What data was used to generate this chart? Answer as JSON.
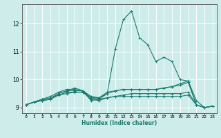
{
  "xlabel": "Humidex (Indice chaleur)",
  "ylabel": "",
  "xlim": [
    -0.5,
    23.5
  ],
  "ylim": [
    8.8,
    12.7
  ],
  "yticks": [
    9,
    10,
    11,
    12
  ],
  "xticks": [
    0,
    1,
    2,
    3,
    4,
    5,
    6,
    7,
    8,
    9,
    10,
    11,
    12,
    13,
    14,
    15,
    16,
    17,
    18,
    19,
    20,
    21,
    22,
    23
  ],
  "bg_color": "#cdecea",
  "line_color": "#1a7a6e",
  "grid_color": "#ffffff",
  "lines": [
    {
      "x": [
        0,
        1,
        2,
        3,
        4,
        5,
        6,
        7,
        8,
        9,
        10,
        11,
        12,
        13,
        14,
        15,
        16,
        17,
        18,
        19,
        20,
        21,
        22,
        23
      ],
      "y": [
        9.1,
        9.2,
        9.3,
        9.4,
        9.55,
        9.65,
        9.65,
        9.6,
        9.25,
        9.3,
        9.5,
        11.1,
        12.15,
        12.45,
        11.5,
        11.25,
        10.65,
        10.8,
        10.65,
        10.0,
        9.95,
        9.25,
        9.0,
        9.05
      ]
    },
    {
      "x": [
        0,
        1,
        2,
        3,
        4,
        5,
        6,
        7,
        8,
        9,
        10,
        11,
        12,
        13,
        14,
        15,
        16,
        17,
        18,
        19,
        20,
        21,
        22,
        23
      ],
      "y": [
        9.1,
        9.2,
        9.3,
        9.35,
        9.5,
        9.6,
        9.6,
        9.6,
        9.35,
        9.35,
        9.55,
        9.6,
        9.65,
        9.65,
        9.65,
        9.65,
        9.65,
        9.7,
        9.75,
        9.8,
        9.9,
        9.1,
        9.0,
        9.05
      ]
    },
    {
      "x": [
        0,
        1,
        2,
        3,
        4,
        5,
        6,
        7,
        8,
        9,
        10,
        11,
        12,
        13,
        14,
        15,
        16,
        17,
        18,
        19,
        20,
        21,
        22,
        23
      ],
      "y": [
        9.1,
        9.2,
        9.25,
        9.3,
        9.45,
        9.55,
        9.55,
        9.55,
        9.3,
        9.25,
        9.35,
        9.4,
        9.45,
        9.5,
        9.5,
        9.5,
        9.5,
        9.5,
        9.5,
        9.5,
        9.55,
        9.1,
        9.0,
        9.05
      ]
    },
    {
      "x": [
        0,
        1,
        2,
        3,
        4,
        5,
        6,
        7,
        8,
        9,
        10,
        11,
        12,
        13,
        14,
        15,
        16,
        17,
        18,
        19,
        20,
        21,
        22,
        23
      ],
      "y": [
        9.1,
        9.2,
        9.25,
        9.3,
        9.45,
        9.5,
        9.55,
        9.55,
        9.35,
        9.3,
        9.35,
        9.4,
        9.4,
        9.4,
        9.4,
        9.4,
        9.4,
        9.4,
        9.4,
        9.4,
        9.45,
        9.1,
        9.0,
        9.05
      ]
    },
    {
      "x": [
        0,
        1,
        2,
        3,
        4,
        5,
        6,
        7,
        8,
        9,
        10,
        11,
        12,
        13,
        14,
        15,
        16,
        17,
        18,
        19,
        20,
        21,
        22,
        23
      ],
      "y": [
        9.1,
        9.2,
        9.25,
        9.3,
        9.5,
        9.6,
        9.7,
        9.6,
        9.4,
        9.35,
        9.5,
        9.6,
        9.65,
        9.65,
        9.65,
        9.65,
        9.65,
        9.7,
        9.75,
        9.85,
        9.95,
        9.1,
        9.0,
        9.05
      ]
    }
  ]
}
